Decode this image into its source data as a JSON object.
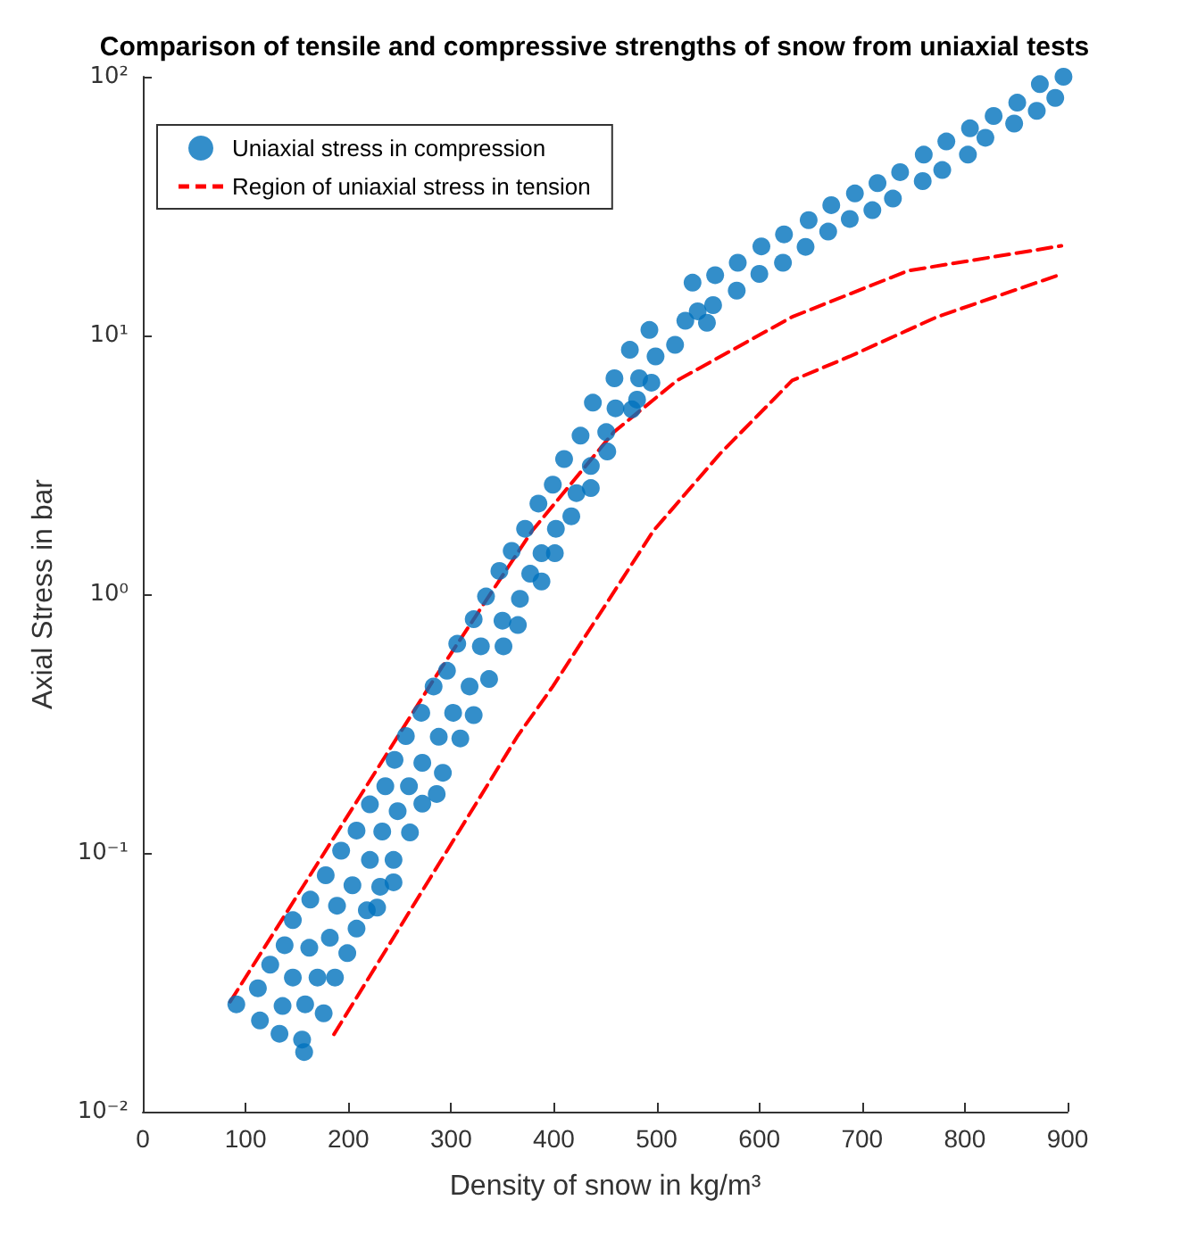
{
  "chart_data": {
    "type": "scatter",
    "title": "Comparison of tensile and compressive strengths of snow from uniaxial tests",
    "xlabel": "Density of snow in kg/m³",
    "ylabel": "Axial Stress in bar",
    "log": "y",
    "grid": false,
    "legend": "top left",
    "marker": "circle",
    "xlim": [
      0,
      900
    ],
    "xticks": [
      0,
      100,
      200,
      300,
      400,
      500,
      600,
      700,
      800,
      900
    ],
    "ylim": [
      0.01,
      100
    ],
    "yticks": [
      {
        "value": 0.01,
        "label": "10⁻²"
      },
      {
        "value": 0.1,
        "label": "10⁻¹"
      },
      {
        "value": 1,
        "label": "10⁰"
      },
      {
        "value": 10,
        "label": "10¹"
      },
      {
        "value": 100,
        "label": "10²"
      }
    ],
    "series": [
      {
        "name": "Uniaxial stress in compression",
        "color": "#0072bd",
        "x": [
          91,
          112,
          114,
          133,
          124,
          146,
          136,
          157,
          155,
          158,
          176,
          170,
          187,
          138,
          146,
          162,
          163,
          182,
          199,
          189,
          178,
          208,
          204,
          193,
          221,
          218,
          228,
          231,
          244,
          244,
          208,
          221,
          233,
          260,
          236,
          248,
          272,
          286,
          259,
          245,
          272,
          292,
          256,
          288,
          309,
          271,
          302,
          322,
          283,
          318,
          337,
          296,
          306,
          329,
          351,
          322,
          350,
          365,
          334,
          367,
          347,
          377,
          388,
          359,
          388,
          401,
          372,
          402,
          417,
          385,
          422,
          436,
          399,
          436,
          410,
          452,
          426,
          451,
          438,
          460,
          476,
          481,
          459,
          483,
          495,
          474,
          499,
          518,
          493,
          535,
          528,
          540,
          549,
          555,
          557,
          578,
          579,
          600,
          602,
          623,
          624,
          645,
          648,
          667,
          670,
          688,
          693,
          710,
          715,
          730,
          737,
          759,
          760,
          778,
          782,
          803,
          805,
          820,
          828,
          848,
          851,
          870,
          873,
          888,
          896
        ],
        "values": [
          0.026,
          0.03,
          0.0225,
          0.02,
          0.037,
          0.033,
          0.0256,
          0.017,
          0.019,
          0.026,
          0.024,
          0.033,
          0.033,
          0.044,
          0.055,
          0.043,
          0.066,
          0.047,
          0.041,
          0.0625,
          0.082,
          0.051,
          0.075,
          0.102,
          0.094,
          0.06,
          0.0615,
          0.074,
          0.077,
          0.094,
          0.122,
          0.154,
          0.121,
          0.12,
          0.181,
          0.145,
          0.155,
          0.169,
          0.181,
          0.229,
          0.223,
          0.204,
          0.283,
          0.281,
          0.277,
          0.348,
          0.348,
          0.341,
          0.44,
          0.44,
          0.47,
          0.506,
          0.643,
          0.629,
          0.629,
          0.8,
          0.79,
          0.76,
          0.98,
          0.96,
          1.23,
          1.2,
          1.12,
          1.47,
          1.44,
          1.44,
          1.79,
          1.79,
          2.0,
          2.24,
          2.46,
          2.57,
          2.65,
          3.13,
          3.33,
          3.56,
          4.1,
          4.23,
          5.5,
          5.23,
          5.18,
          5.65,
          6.83,
          6.83,
          6.57,
          8.8,
          8.3,
          9.2,
          10.5,
          16.0,
          11.4,
          12.4,
          11.2,
          13.1,
          17.1,
          14.9,
          19.1,
          17.3,
          22.1,
          19.1,
          24.6,
          22.0,
          27.9,
          25.2,
          31.9,
          28.2,
          35.4,
          30.5,
          38.8,
          33.8,
          42.8,
          39.5,
          50.0,
          43.6,
          56.2,
          50.0,
          63.2,
          58.1,
          70.5,
          65.9,
          79.4,
          73.8,
          93.6,
          82.8,
          100
        ]
      },
      {
        "name": "Region of uniaxial stress in tension",
        "type": "line",
        "line_style": "dashed",
        "marker": "none",
        "color": "#ff0000",
        "x": [
          85,
          283,
          379,
          458,
          520,
          632,
          745,
          894
        ],
        "values": [
          0.0266,
          0.467,
          1.76,
          4.22,
          6.7,
          11.8,
          17.8,
          22.2
        ]
      },
      {
        "type": "line",
        "line_style": "dashed",
        "marker": "none",
        "color": "#ff0000",
        "x": [
          186,
          365,
          399,
          497,
          562,
          632,
          688,
          773,
          891
        ],
        "values": [
          0.0199,
          0.284,
          0.44,
          1.76,
          3.5,
          6.7,
          8.3,
          11.8,
          17.1
        ]
      }
    ]
  }
}
